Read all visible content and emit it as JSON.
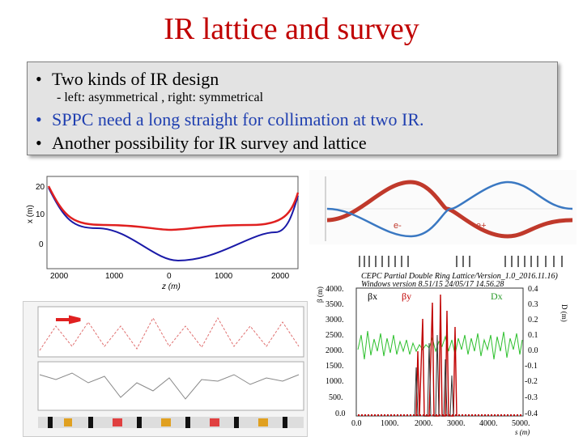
{
  "slide": {
    "title": "IR lattice and survey",
    "bullets": [
      {
        "text": "Two kinds of IR design",
        "sub": "- left: asymmetrical , right: symmetrical"
      },
      {
        "text": "SPPC need a long straight for collimation at two IR."
      },
      {
        "text": "Another possibility for IR survey and lattice"
      }
    ],
    "bullet_char": "•"
  },
  "survey_plot": {
    "ylabel": "x (m)",
    "xlabel": "z (m)",
    "y_ticks": [
      "20",
      "10",
      "0"
    ],
    "x_ticks": [
      "2000",
      "1000",
      "0",
      "1000",
      "2000"
    ],
    "colors": {
      "asym": "#1a1aa8",
      "sym": "#e02020"
    }
  },
  "symmetric_plot": {
    "labels": {
      "electron": "e-",
      "positron": "e+"
    },
    "colors": {
      "electron": "#c0392b",
      "positron": "#3a78c2"
    }
  },
  "beta_plot": {
    "header1": "CEPC Partial Double Ring Lattice/Version_1.0_2016.11.16)",
    "header2": "Windows version 8.51/15      24/05/17  14.56.28",
    "legend": [
      "βx",
      "βy",
      "Dx"
    ],
    "ylabel_left": "β (m)",
    "ylabel_right": "D (m)",
    "xlabel": "s (m)",
    "y_ticks_left": [
      "4000.",
      "3500.",
      "3000.",
      "2500.",
      "2000.",
      "1500.",
      "1000.",
      "500.",
      "0.0"
    ],
    "y_ticks_right": [
      "0.4",
      "0.3",
      "0.2",
      "0.1",
      "0.0",
      "-0.1",
      "-0.2",
      "-0.3",
      "-0.4"
    ],
    "x_ticks": [
      "0.0",
      "1000.",
      "2000.",
      "3000.",
      "4000.",
      "5000."
    ]
  }
}
